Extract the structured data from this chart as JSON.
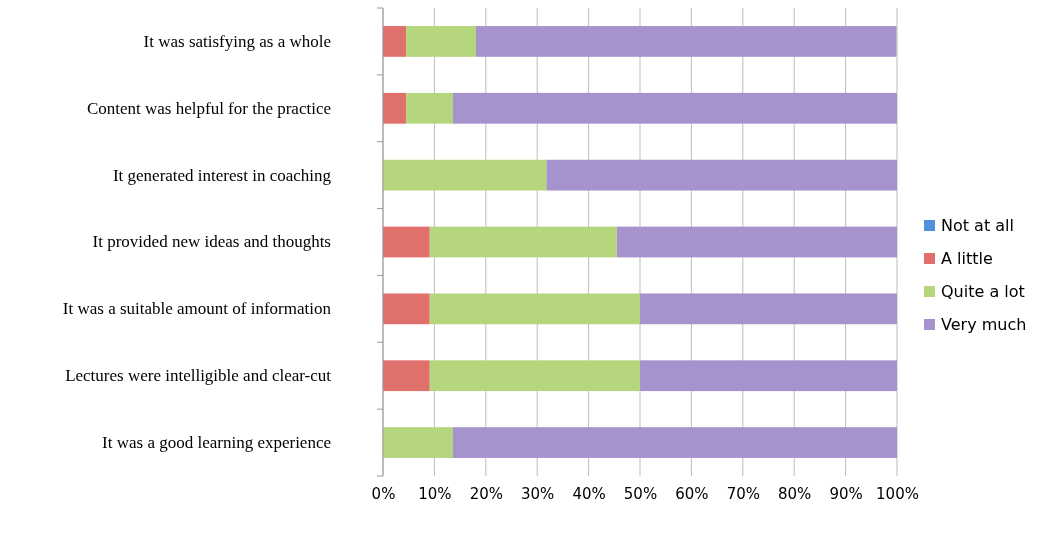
{
  "chart_data": {
    "type": "bar",
    "orientation": "horizontal",
    "stacked": true,
    "categories": [
      "It was satisfying as a whole",
      "Content was helpful for the practice",
      "It generated interest in coaching",
      "It provided new ideas and thoughts",
      "It was a suitable amount of information",
      "Lectures were intelligible and clear-cut",
      "It was a good learning experience"
    ],
    "series": [
      {
        "name": "Not at all",
        "color": "#4f8fdc",
        "values": [
          0,
          0,
          0,
          0,
          0,
          0,
          0
        ]
      },
      {
        "name": "A little",
        "color": "#e0706b",
        "values": [
          4.5,
          4.5,
          0,
          9.1,
          9.1,
          9.1,
          0
        ]
      },
      {
        "name": "Quite a lot",
        "color": "#b5d67c",
        "values": [
          13.6,
          9.1,
          31.8,
          36.4,
          40.9,
          40.9,
          13.6
        ]
      },
      {
        "name": "Very much",
        "color": "#a692cc",
        "values": [
          81.8,
          86.4,
          68.2,
          54.5,
          50,
          50,
          86.4
        ]
      }
    ],
    "xlim": [
      0,
      100
    ],
    "xticks": [
      {
        "value": 0,
        "label": "0%"
      },
      {
        "value": 10,
        "label": "10%"
      },
      {
        "value": 20,
        "label": "20%"
      },
      {
        "value": 30,
        "label": "30%"
      },
      {
        "value": 40,
        "label": "40%"
      },
      {
        "value": 50,
        "label": "50%"
      },
      {
        "value": 60,
        "label": "60%"
      },
      {
        "value": 70,
        "label": "70%"
      },
      {
        "value": 80,
        "label": "80%"
      },
      {
        "value": 90,
        "label": "90%"
      },
      {
        "value": 100,
        "label": "100%"
      }
    ],
    "grid": "x",
    "legend": "right"
  }
}
